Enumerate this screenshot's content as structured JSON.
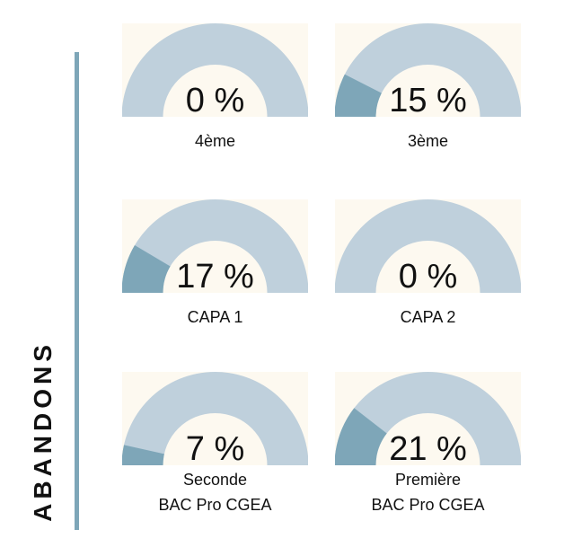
{
  "side_title": "ABANDONS",
  "colors": {
    "panel_bg": "#fdf9f0",
    "track": "#bfd0dc",
    "fill": "#7ea6b8",
    "accent_bar": "#7ea6b8"
  },
  "chart_data": [
    {
      "type": "gauge",
      "label": "4ème",
      "value": 0,
      "value_text": "0 %"
    },
    {
      "type": "gauge",
      "label": "3ème",
      "value": 15,
      "value_text": "15 %"
    },
    {
      "type": "gauge",
      "label": "CAPA 1",
      "value": 17,
      "value_text": "17 %"
    },
    {
      "type": "gauge",
      "label": "CAPA 2",
      "value": 0,
      "value_text": "0 %"
    },
    {
      "type": "gauge",
      "label": "Seconde",
      "label2": "BAC Pro CGEA",
      "value": 7,
      "value_text": "7 %"
    },
    {
      "type": "gauge",
      "label": "Première",
      "label2": "BAC Pro CGEA",
      "value": 21,
      "value_text": "21 %"
    }
  ]
}
